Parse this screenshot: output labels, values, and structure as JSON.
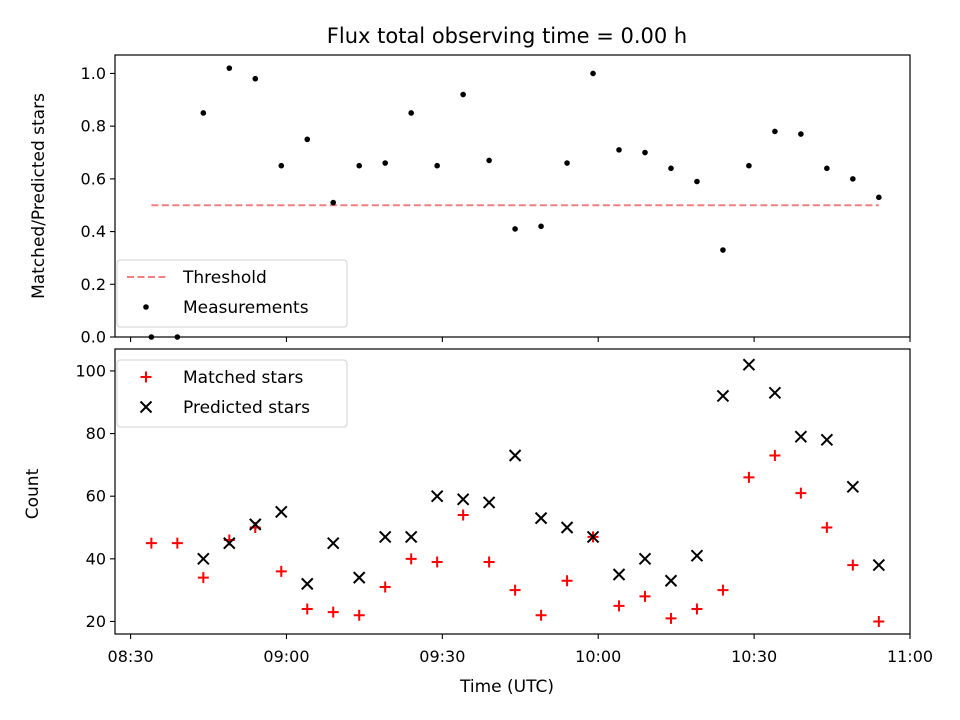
{
  "chart_data": [
    {
      "type": "scatter",
      "title": "Flux total observing time = 0.00 h",
      "xlabel": "",
      "ylabel": "Matched/Predicted stars",
      "x_unit": "time (UTC)",
      "xlim": [
        "08:27",
        "11:00"
      ],
      "ylim": [
        0,
        1.07
      ],
      "y_ticks": [
        0.0,
        0.2,
        0.4,
        0.6,
        0.8,
        1.0
      ],
      "x_ticks": [
        "08:30",
        "09:00",
        "09:30",
        "10:00",
        "10:30",
        "11:00"
      ],
      "grid": false,
      "legend_position": "lower-left",
      "series": [
        {
          "name": "Threshold",
          "style": "dashed-line",
          "color": "#f08080",
          "points": [
            {
              "x": "08:34",
              "y": 0.5
            },
            {
              "x": "10:54",
              "y": 0.5
            }
          ]
        },
        {
          "name": "Measurements",
          "style": "dot",
          "color": "#000000",
          "points": [
            {
              "x": "08:34",
              "y": 0.0
            },
            {
              "x": "08:39",
              "y": 0.0
            },
            {
              "x": "08:44",
              "y": 0.85
            },
            {
              "x": "08:49",
              "y": 1.02
            },
            {
              "x": "08:54",
              "y": 0.98
            },
            {
              "x": "08:59",
              "y": 0.65
            },
            {
              "x": "09:04",
              "y": 0.75
            },
            {
              "x": "09:09",
              "y": 0.51
            },
            {
              "x": "09:14",
              "y": 0.65
            },
            {
              "x": "09:19",
              "y": 0.66
            },
            {
              "x": "09:24",
              "y": 0.85
            },
            {
              "x": "09:29",
              "y": 0.65
            },
            {
              "x": "09:34",
              "y": 0.92
            },
            {
              "x": "09:39",
              "y": 0.67
            },
            {
              "x": "09:44",
              "y": 0.41
            },
            {
              "x": "09:49",
              "y": 0.42
            },
            {
              "x": "09:54",
              "y": 0.66
            },
            {
              "x": "09:59",
              "y": 1.0
            },
            {
              "x": "10:04",
              "y": 0.71
            },
            {
              "x": "10:09",
              "y": 0.7
            },
            {
              "x": "10:14",
              "y": 0.64
            },
            {
              "x": "10:19",
              "y": 0.59
            },
            {
              "x": "10:24",
              "y": 0.33
            },
            {
              "x": "10:29",
              "y": 0.65
            },
            {
              "x": "10:34",
              "y": 0.78
            },
            {
              "x": "10:39",
              "y": 0.77
            },
            {
              "x": "10:44",
              "y": 0.64
            },
            {
              "x": "10:49",
              "y": 0.6
            },
            {
              "x": "10:54",
              "y": 0.53
            }
          ]
        }
      ]
    },
    {
      "type": "scatter",
      "title": "",
      "xlabel": "Time (UTC)",
      "ylabel": "Count",
      "x_unit": "time (UTC)",
      "xlim": [
        "08:27",
        "11:00"
      ],
      "ylim": [
        16,
        107
      ],
      "y_ticks": [
        20,
        40,
        60,
        80,
        100
      ],
      "x_ticks": [
        "08:30",
        "09:00",
        "09:30",
        "10:00",
        "10:30",
        "11:00"
      ],
      "grid": false,
      "legend_position": "upper-left",
      "series": [
        {
          "name": "Matched stars",
          "marker": "plus",
          "color": "#ff0000",
          "points": [
            {
              "x": "08:34",
              "y": 45
            },
            {
              "x": "08:39",
              "y": 45
            },
            {
              "x": "08:44",
              "y": 34
            },
            {
              "x": "08:49",
              "y": 46
            },
            {
              "x": "08:54",
              "y": 50
            },
            {
              "x": "08:59",
              "y": 36
            },
            {
              "x": "09:04",
              "y": 24
            },
            {
              "x": "09:09",
              "y": 23
            },
            {
              "x": "09:14",
              "y": 22
            },
            {
              "x": "09:19",
              "y": 31
            },
            {
              "x": "09:24",
              "y": 40
            },
            {
              "x": "09:29",
              "y": 39
            },
            {
              "x": "09:34",
              "y": 54
            },
            {
              "x": "09:39",
              "y": 39
            },
            {
              "x": "09:44",
              "y": 30
            },
            {
              "x": "09:49",
              "y": 22
            },
            {
              "x": "09:54",
              "y": 33
            },
            {
              "x": "09:59",
              "y": 47
            },
            {
              "x": "10:04",
              "y": 25
            },
            {
              "x": "10:09",
              "y": 28
            },
            {
              "x": "10:14",
              "y": 21
            },
            {
              "x": "10:19",
              "y": 24
            },
            {
              "x": "10:24",
              "y": 30
            },
            {
              "x": "10:29",
              "y": 66
            },
            {
              "x": "10:34",
              "y": 73
            },
            {
              "x": "10:39",
              "y": 61
            },
            {
              "x": "10:44",
              "y": 50
            },
            {
              "x": "10:49",
              "y": 38
            },
            {
              "x": "10:54",
              "y": 20
            }
          ]
        },
        {
          "name": "Predicted stars",
          "marker": "x",
          "color": "#000000",
          "points": [
            {
              "x": "08:44",
              "y": 40
            },
            {
              "x": "08:49",
              "y": 45
            },
            {
              "x": "08:54",
              "y": 51
            },
            {
              "x": "08:59",
              "y": 55
            },
            {
              "x": "09:04",
              "y": 32
            },
            {
              "x": "09:09",
              "y": 45
            },
            {
              "x": "09:14",
              "y": 34
            },
            {
              "x": "09:19",
              "y": 47
            },
            {
              "x": "09:24",
              "y": 47
            },
            {
              "x": "09:29",
              "y": 60
            },
            {
              "x": "09:34",
              "y": 59
            },
            {
              "x": "09:39",
              "y": 58
            },
            {
              "x": "09:44",
              "y": 73
            },
            {
              "x": "09:49",
              "y": 53
            },
            {
              "x": "09:54",
              "y": 50
            },
            {
              "x": "09:59",
              "y": 47
            },
            {
              "x": "10:04",
              "y": 35
            },
            {
              "x": "10:09",
              "y": 40
            },
            {
              "x": "10:14",
              "y": 33
            },
            {
              "x": "10:19",
              "y": 41
            },
            {
              "x": "10:24",
              "y": 92
            },
            {
              "x": "10:29",
              "y": 102
            },
            {
              "x": "10:34",
              "y": 93
            },
            {
              "x": "10:39",
              "y": 79
            },
            {
              "x": "10:44",
              "y": 78
            },
            {
              "x": "10:49",
              "y": 63
            },
            {
              "x": "10:54",
              "y": 38
            }
          ]
        }
      ]
    }
  ]
}
